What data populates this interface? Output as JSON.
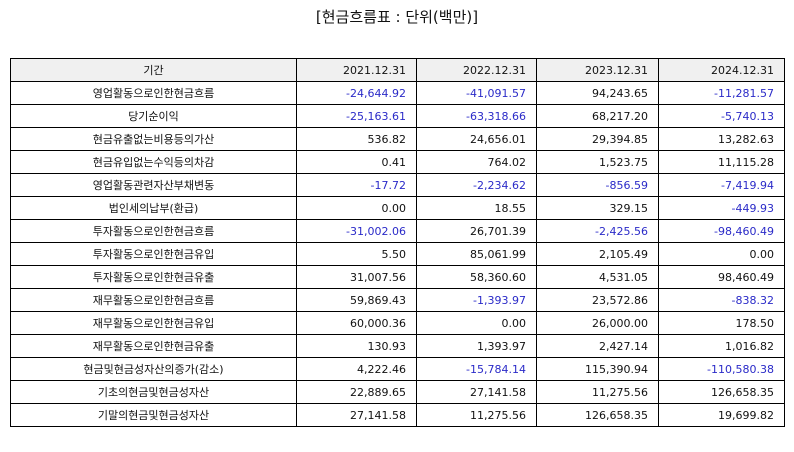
{
  "title": "[현금흐름표 : 단위(백만)]",
  "colors": {
    "negative": "#2a2ac8",
    "positive": "#111111",
    "header_bg": "#f0f0f0"
  },
  "table": {
    "columns": [
      "기간",
      "2021.12.31",
      "2022.12.31",
      "2023.12.31",
      "2024.12.31"
    ],
    "rows": [
      {
        "label": "영업활동으로인한현금흐름",
        "values": [
          "-24,644.92",
          "-41,091.57",
          "94,243.65",
          "-11,281.57"
        ]
      },
      {
        "label": "당기순이익",
        "values": [
          "-25,163.61",
          "-63,318.66",
          "68,217.20",
          "-5,740.13"
        ]
      },
      {
        "label": "현금유출없는비용등의가산",
        "values": [
          "536.82",
          "24,656.01",
          "29,394.85",
          "13,282.63"
        ]
      },
      {
        "label": "현금유입없는수익등의차감",
        "values": [
          "0.41",
          "764.02",
          "1,523.75",
          "11,115.28"
        ]
      },
      {
        "label": "영업활동관련자산부채변동",
        "values": [
          "-17.72",
          "-2,234.62",
          "-856.59",
          "-7,419.94"
        ]
      },
      {
        "label": "법인세의납부(환급)",
        "values": [
          "0.00",
          "18.55",
          "329.15",
          "-449.93"
        ]
      },
      {
        "label": "투자활동으로인한현금흐름",
        "values": [
          "-31,002.06",
          "26,701.39",
          "-2,425.56",
          "-98,460.49"
        ]
      },
      {
        "label": "투자활동으로인한현금유입",
        "values": [
          "5.50",
          "85,061.99",
          "2,105.49",
          "0.00"
        ]
      },
      {
        "label": "투자활동으로인한현금유출",
        "values": [
          "31,007.56",
          "58,360.60",
          "4,531.05",
          "98,460.49"
        ]
      },
      {
        "label": "재무활동으로인한현금흐름",
        "values": [
          "59,869.43",
          "-1,393.97",
          "23,572.86",
          "-838.32"
        ]
      },
      {
        "label": "재무활동으로인한현금유입",
        "values": [
          "60,000.36",
          "0.00",
          "26,000.00",
          "178.50"
        ]
      },
      {
        "label": "재무활동으로인한현금유출",
        "values": [
          "130.93",
          "1,393.97",
          "2,427.14",
          "1,016.82"
        ]
      },
      {
        "label": "현금및현금성자산의증가(감소)",
        "values": [
          "4,222.46",
          "-15,784.14",
          "115,390.94",
          "-110,580.38"
        ]
      },
      {
        "label": "기초의현금및현금성자산",
        "values": [
          "22,889.65",
          "27,141.58",
          "11,275.56",
          "126,658.35"
        ]
      },
      {
        "label": "기말의현금및현금성자산",
        "values": [
          "27,141.58",
          "11,275.56",
          "126,658.35",
          "19,699.82"
        ]
      }
    ]
  }
}
